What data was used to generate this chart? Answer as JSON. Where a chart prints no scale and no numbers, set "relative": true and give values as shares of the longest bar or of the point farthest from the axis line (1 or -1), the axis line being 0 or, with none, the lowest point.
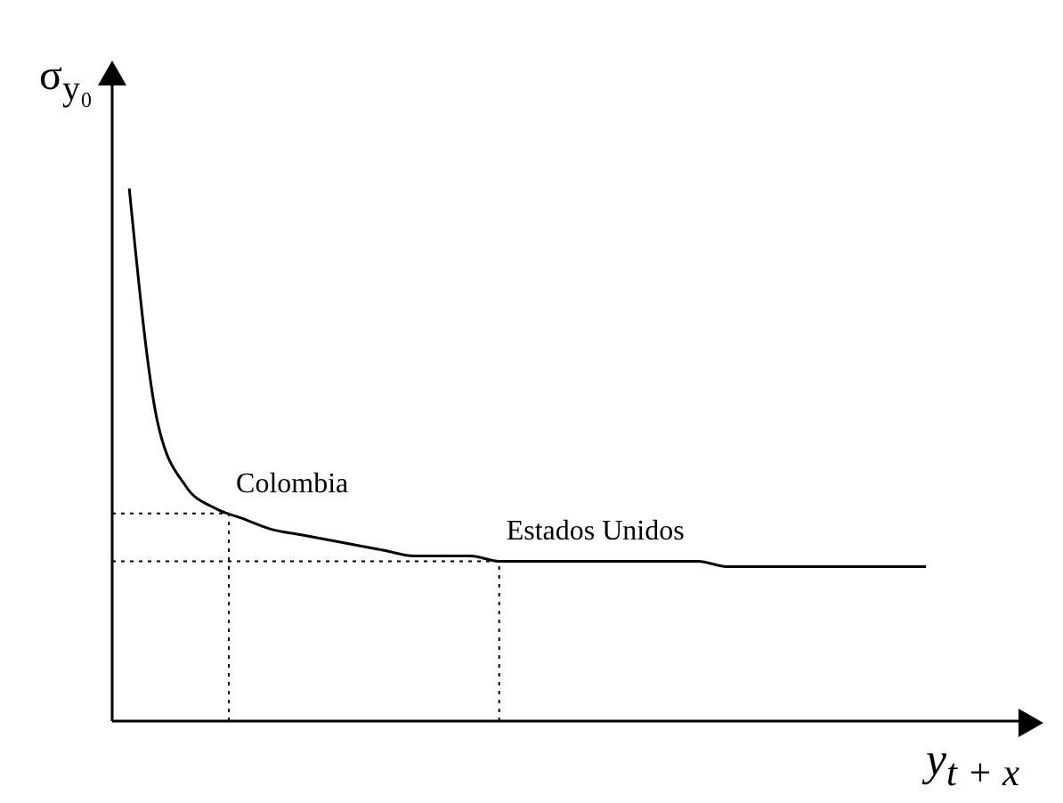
{
  "chart_data": {
    "type": "line",
    "relative": true,
    "xlabel": "y$_{t + x}$",
    "ylabel": "σ$_{y₀}$",
    "categories": [
      null,
      null,
      null,
      null,
      null,
      null,
      null,
      null,
      null,
      null,
      null,
      null,
      null,
      null,
      null,
      null,
      null,
      null,
      null,
      null,
      null,
      null,
      null,
      null,
      null,
      null,
      null,
      null,
      null
    ],
    "series": [
      {
        "color": "#000000",
        "values": [
          1,
          0.56,
          0.44,
          0.4,
          0.38,
          0.36,
          0.35,
          0.34,
          0.33,
          0.32,
          0.31,
          0.31,
          0.31,
          0.3,
          0.3,
          0.3,
          0.3,
          0.3,
          0.3,
          0.3,
          0.3,
          0.29,
          0.29,
          0.29,
          0.29,
          0.29,
          0.29,
          0.29,
          0.29
        ]
      }
    ],
    "ref_lines": [
      {
        "axis": "y",
        "value": 0.39,
        "label": "Colombia",
        "line_style": "dotted"
      },
      {
        "axis": "y",
        "value": 0.3,
        "label": "Estados Unidos",
        "line_style": "dotted"
      }
    ],
    "marker": "none",
    "line_style": "solid"
  }
}
